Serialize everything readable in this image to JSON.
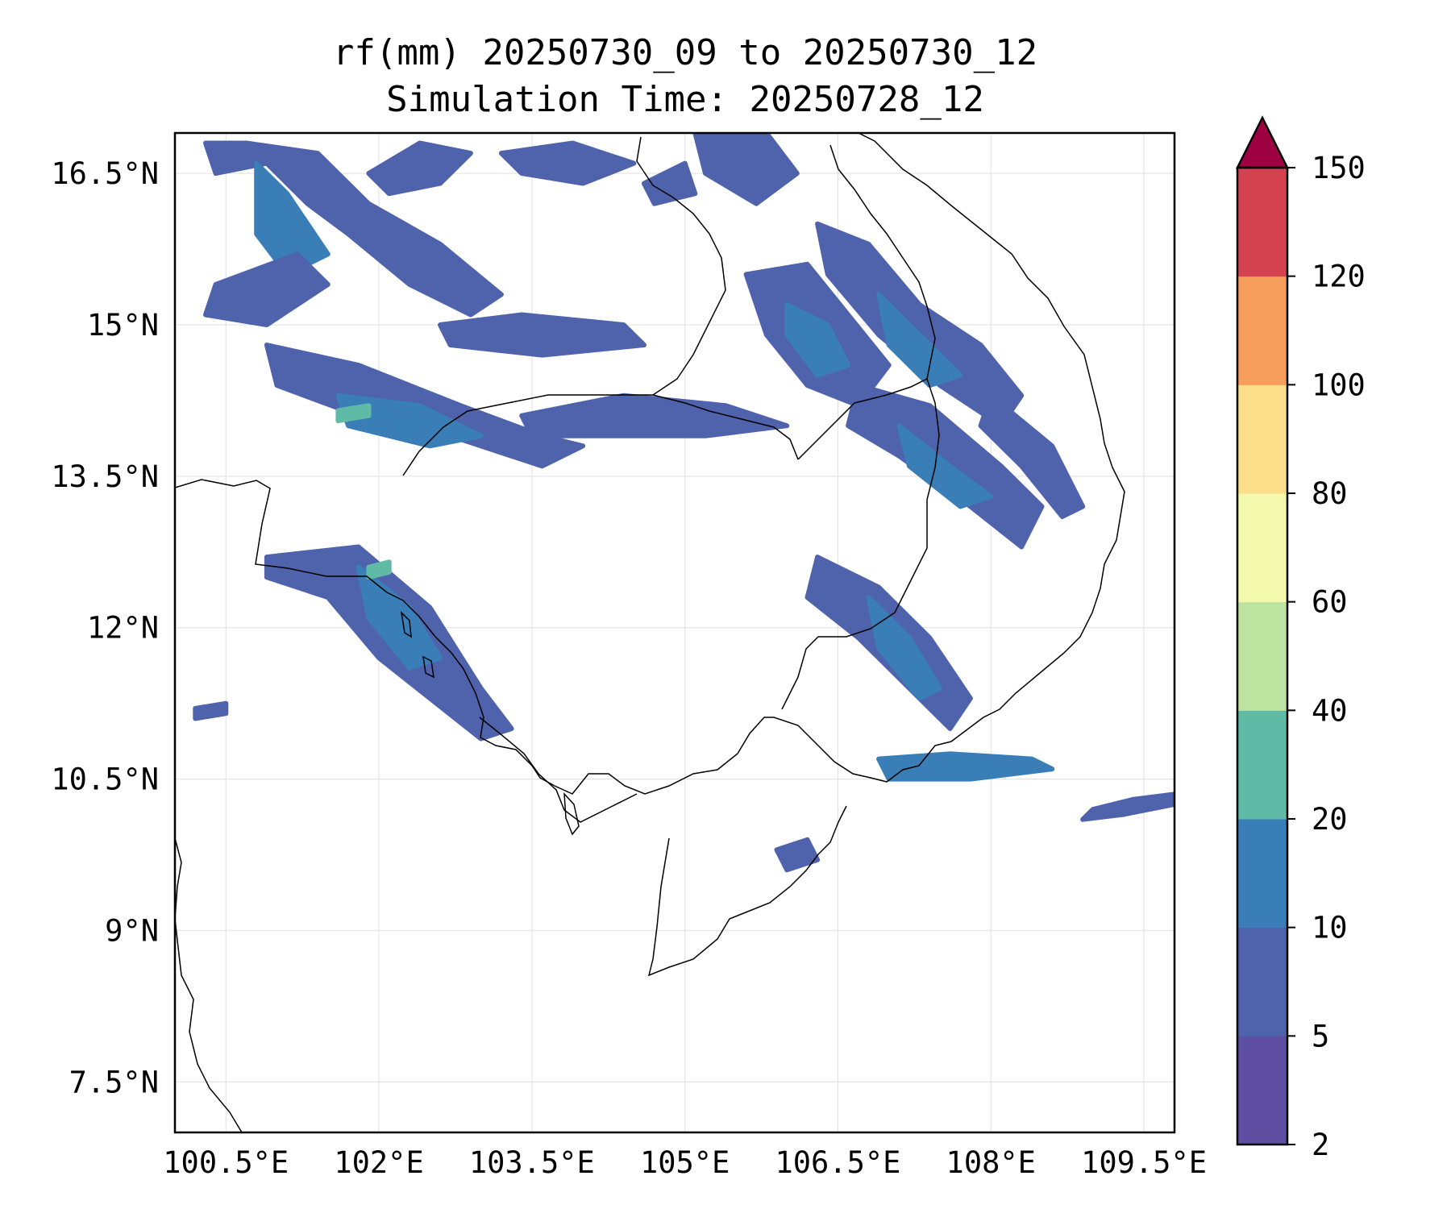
{
  "title": "rf(mm) 20250730_09 to 20250730_12",
  "subtitle": "Simulation Time: 20250728_12",
  "map": {
    "extent": {
      "lon_min": 100.0,
      "lon_max": 109.8,
      "lat_min": 7.0,
      "lat_max": 16.9
    },
    "lon_ticks": [
      {
        "value": 100.5,
        "label": "100.5°E"
      },
      {
        "value": 102.0,
        "label": "102°E"
      },
      {
        "value": 103.5,
        "label": "103.5°E"
      },
      {
        "value": 105.0,
        "label": "105°E"
      },
      {
        "value": 106.5,
        "label": "106.5°E"
      },
      {
        "value": 108.0,
        "label": "108°E"
      },
      {
        "value": 109.5,
        "label": "109.5°E"
      }
    ],
    "lat_ticks": [
      {
        "value": 16.5,
        "label": "16.5°N"
      },
      {
        "value": 15.0,
        "label": "15°N"
      },
      {
        "value": 13.5,
        "label": "13.5°N"
      },
      {
        "value": 12.0,
        "label": "12°N"
      },
      {
        "value": 10.5,
        "label": "10.5°N"
      },
      {
        "value": 9.0,
        "label": "9°N"
      },
      {
        "value": 7.5,
        "label": "7.5°N"
      }
    ],
    "grid": true
  },
  "colorbar": {
    "levels": [
      "2",
      "5",
      "10",
      "20",
      "40",
      "60",
      "80",
      "100",
      "120",
      "150"
    ],
    "colors": [
      "#5e4fa2",
      "#4f62ac",
      "#3a7eb8",
      "#5fbaa6",
      "#bde3a0",
      "#f2f9ac",
      "#fbdd8a",
      "#f79d5b",
      "#d5424f"
    ],
    "extend_color": "#9e0142",
    "extend": "max"
  },
  "chart_data": {
    "type": "heatmap",
    "variable": "rf(mm)",
    "levels": [
      2,
      5,
      10,
      20,
      40,
      60,
      80,
      100,
      120,
      150
    ],
    "rain_regions": [
      {
        "name": "west-band-north",
        "level": 5,
        "points": [
          [
            100.4,
            16.5
          ],
          [
            100.9,
            16.6
          ],
          [
            101.3,
            16.2
          ],
          [
            101.7,
            15.9
          ],
          [
            102.3,
            15.4
          ],
          [
            102.9,
            15.1
          ],
          [
            103.2,
            15.3
          ],
          [
            102.6,
            15.8
          ],
          [
            101.9,
            16.2
          ],
          [
            101.4,
            16.7
          ],
          [
            100.7,
            16.8
          ],
          [
            100.3,
            16.8
          ]
        ]
      },
      {
        "name": "west-band-north-core",
        "level": 10,
        "points": [
          [
            100.8,
            16.6
          ],
          [
            101.1,
            16.3
          ],
          [
            101.5,
            15.7
          ],
          [
            101.1,
            15.5
          ],
          [
            100.8,
            15.9
          ]
        ]
      },
      {
        "name": "upper-west-spot",
        "level": 5,
        "points": [
          [
            101.9,
            16.5
          ],
          [
            102.4,
            16.8
          ],
          [
            102.9,
            16.7
          ],
          [
            102.6,
            16.4
          ],
          [
            102.1,
            16.3
          ]
        ]
      },
      {
        "name": "north-central-streak",
        "level": 5,
        "points": [
          [
            103.2,
            16.7
          ],
          [
            103.9,
            16.8
          ],
          [
            104.5,
            16.6
          ],
          [
            104.0,
            16.4
          ],
          [
            103.4,
            16.5
          ]
        ]
      },
      {
        "name": "north-central-spot",
        "level": 5,
        "points": [
          [
            104.6,
            16.4
          ],
          [
            105.0,
            16.6
          ],
          [
            105.1,
            16.3
          ],
          [
            104.7,
            16.2
          ]
        ]
      },
      {
        "name": "west-mid-band",
        "level": 5,
        "points": [
          [
            100.4,
            15.4
          ],
          [
            101.2,
            15.7
          ],
          [
            101.5,
            15.4
          ],
          [
            100.9,
            15.0
          ],
          [
            100.3,
            15.1
          ]
        ]
      },
      {
        "name": "central-west-band",
        "level": 5,
        "points": [
          [
            100.9,
            14.8
          ],
          [
            101.8,
            14.6
          ],
          [
            102.8,
            14.2
          ],
          [
            103.6,
            13.9
          ],
          [
            104.0,
            13.8
          ],
          [
            103.6,
            13.6
          ],
          [
            102.7,
            13.9
          ],
          [
            101.8,
            14.1
          ],
          [
            101.0,
            14.4
          ]
        ]
      },
      {
        "name": "central-west-core",
        "level": 10,
        "points": [
          [
            101.6,
            14.3
          ],
          [
            102.4,
            14.2
          ],
          [
            103.0,
            13.9
          ],
          [
            102.5,
            13.8
          ],
          [
            101.7,
            14.0
          ]
        ]
      },
      {
        "name": "green-fleck-a",
        "level": 20,
        "points": [
          [
            101.6,
            14.15
          ],
          [
            101.9,
            14.2
          ],
          [
            101.9,
            14.1
          ],
          [
            101.6,
            14.05
          ]
        ]
      },
      {
        "name": "mid-streak-a",
        "level": 5,
        "points": [
          [
            102.6,
            15.0
          ],
          [
            103.4,
            15.1
          ],
          [
            104.4,
            15.0
          ],
          [
            104.6,
            14.8
          ],
          [
            103.6,
            14.7
          ],
          [
            102.7,
            14.8
          ]
        ]
      },
      {
        "name": "mid-streak-b",
        "level": 5,
        "points": [
          [
            103.4,
            14.1
          ],
          [
            104.4,
            14.3
          ],
          [
            105.4,
            14.2
          ],
          [
            106.0,
            14.0
          ],
          [
            105.2,
            13.9
          ],
          [
            104.1,
            13.9
          ],
          [
            103.5,
            13.9
          ]
        ]
      },
      {
        "name": "laos-north-band",
        "level": 5,
        "points": [
          [
            105.1,
            16.9
          ],
          [
            105.8,
            16.9
          ],
          [
            106.1,
            16.5
          ],
          [
            105.7,
            16.2
          ],
          [
            105.2,
            16.5
          ]
        ]
      },
      {
        "name": "laos-mid-band",
        "level": 5,
        "points": [
          [
            105.6,
            15.5
          ],
          [
            106.2,
            15.6
          ],
          [
            106.6,
            15.1
          ],
          [
            107.0,
            14.6
          ],
          [
            106.7,
            14.2
          ],
          [
            106.2,
            14.4
          ],
          [
            105.8,
            14.9
          ]
        ]
      },
      {
        "name": "laos-mid-core",
        "level": 10,
        "points": [
          [
            106.0,
            15.2
          ],
          [
            106.4,
            15.0
          ],
          [
            106.6,
            14.6
          ],
          [
            106.3,
            14.5
          ],
          [
            106.0,
            14.9
          ]
        ]
      },
      {
        "name": "north-east-band",
        "level": 5,
        "points": [
          [
            106.3,
            16.0
          ],
          [
            106.8,
            15.8
          ],
          [
            107.3,
            15.2
          ],
          [
            107.9,
            14.8
          ],
          [
            108.3,
            14.3
          ],
          [
            108.1,
            14.0
          ],
          [
            107.5,
            14.4
          ],
          [
            106.9,
            14.9
          ],
          [
            106.4,
            15.5
          ]
        ]
      },
      {
        "name": "north-east-core",
        "level": 10,
        "points": [
          [
            106.9,
            15.3
          ],
          [
            107.3,
            14.9
          ],
          [
            107.7,
            14.5
          ],
          [
            107.4,
            14.4
          ],
          [
            107.0,
            14.8
          ]
        ]
      },
      {
        "name": "cambodia-east-band",
        "level": 5,
        "points": [
          [
            106.7,
            14.4
          ],
          [
            107.4,
            14.2
          ],
          [
            108.1,
            13.6
          ],
          [
            108.5,
            13.2
          ],
          [
            108.3,
            12.8
          ],
          [
            107.8,
            13.2
          ],
          [
            107.1,
            13.7
          ],
          [
            106.6,
            14.0
          ]
        ]
      },
      {
        "name": "cambodia-east-core",
        "level": 10,
        "points": [
          [
            107.1,
            14.0
          ],
          [
            107.6,
            13.6
          ],
          [
            108.0,
            13.3
          ],
          [
            107.7,
            13.2
          ],
          [
            107.2,
            13.6
          ]
        ]
      },
      {
        "name": "east-coast-band",
        "level": 5,
        "points": [
          [
            108.0,
            14.3
          ],
          [
            108.6,
            13.8
          ],
          [
            108.9,
            13.2
          ],
          [
            108.7,
            13.1
          ],
          [
            108.3,
            13.6
          ],
          [
            107.9,
            14.0
          ]
        ]
      },
      {
        "name": "southwest-coast-band",
        "level": 5,
        "points": [
          [
            100.9,
            12.7
          ],
          [
            101.8,
            12.8
          ],
          [
            102.5,
            12.2
          ],
          [
            103.0,
            11.4
          ],
          [
            103.3,
            11.0
          ],
          [
            103.0,
            10.9
          ],
          [
            102.5,
            11.3
          ],
          [
            102.0,
            11.7
          ],
          [
            101.5,
            12.3
          ],
          [
            100.9,
            12.5
          ]
        ]
      },
      {
        "name": "southwest-coast-core",
        "level": 10,
        "points": [
          [
            101.8,
            12.6
          ],
          [
            102.3,
            12.2
          ],
          [
            102.6,
            11.7
          ],
          [
            102.3,
            11.6
          ],
          [
            101.9,
            12.1
          ]
        ]
      },
      {
        "name": "southwest-green-fleck",
        "level": 20,
        "points": [
          [
            101.9,
            12.6
          ],
          [
            102.1,
            12.65
          ],
          [
            102.1,
            12.55
          ],
          [
            101.9,
            12.5
          ]
        ]
      },
      {
        "name": "cambodia-southeast-band",
        "level": 5,
        "points": [
          [
            106.3,
            12.7
          ],
          [
            106.9,
            12.4
          ],
          [
            107.4,
            11.9
          ],
          [
            107.8,
            11.3
          ],
          [
            107.6,
            11.0
          ],
          [
            107.2,
            11.4
          ],
          [
            106.7,
            11.9
          ],
          [
            106.2,
            12.3
          ]
        ]
      },
      {
        "name": "cambodia-southeast-core",
        "level": 10,
        "points": [
          [
            106.8,
            12.3
          ],
          [
            107.2,
            11.9
          ],
          [
            107.5,
            11.4
          ],
          [
            107.3,
            11.3
          ],
          [
            106.9,
            11.8
          ]
        ]
      },
      {
        "name": "south-coast-streak",
        "level": 10,
        "points": [
          [
            106.9,
            10.7
          ],
          [
            107.6,
            10.75
          ],
          [
            108.4,
            10.7
          ],
          [
            108.6,
            10.6
          ],
          [
            107.8,
            10.5
          ],
          [
            107.0,
            10.5
          ]
        ]
      },
      {
        "name": "east-sea-streak",
        "level": 5,
        "points": [
          [
            109.0,
            10.2
          ],
          [
            109.4,
            10.3
          ],
          [
            109.8,
            10.35
          ],
          [
            109.8,
            10.25
          ],
          [
            109.3,
            10.15
          ],
          [
            108.9,
            10.1
          ]
        ]
      },
      {
        "name": "mekong-delta-spot",
        "level": 5,
        "points": [
          [
            105.9,
            9.8
          ],
          [
            106.2,
            9.9
          ],
          [
            106.3,
            9.7
          ],
          [
            106.0,
            9.6
          ]
        ]
      },
      {
        "name": "west-edge-spot",
        "level": 5,
        "points": [
          [
            100.2,
            11.2
          ],
          [
            100.5,
            11.25
          ],
          [
            100.5,
            11.15
          ],
          [
            100.2,
            11.1
          ]
        ]
      }
    ]
  }
}
